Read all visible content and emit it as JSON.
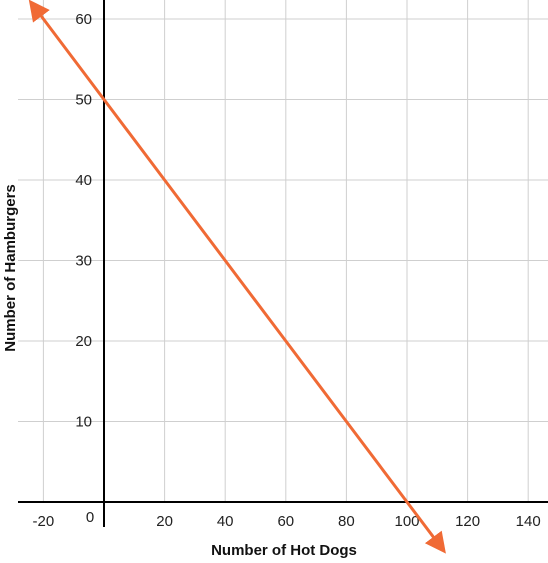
{
  "chart_data": {
    "type": "line",
    "title": "",
    "xlabel": "Number of Hot Dogs",
    "ylabel": "Number of Hamburgers",
    "xlim": [
      -25,
      148
    ],
    "ylim": [
      0,
      61
    ],
    "x_ticks": [
      -20,
      20,
      40,
      60,
      80,
      100,
      120,
      140
    ],
    "y_ticks": [
      10,
      20,
      30,
      40,
      50,
      60
    ],
    "origin_label": "0",
    "grid": true,
    "line_color": "#f06a35",
    "series": [
      {
        "x": [
          -24,
          0,
          20,
          40,
          60,
          80,
          100,
          112
        ],
        "y": [
          62,
          50,
          40,
          30,
          20,
          10,
          0,
          -6
        ],
        "arrows": "both"
      }
    ]
  }
}
